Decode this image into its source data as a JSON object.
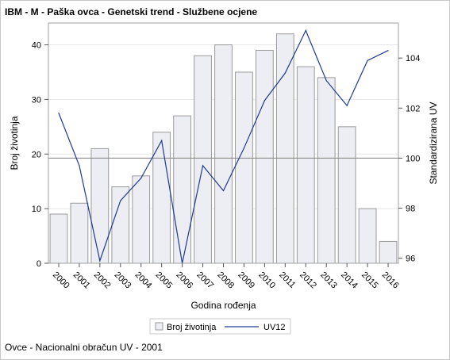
{
  "chart_data": {
    "type": "bar",
    "title": "IBM - M - Paška ovca - Genetski trend - Službene ocjene",
    "xlabel": "Godina rođenja",
    "ylabel": "Broj životinja",
    "y2label": "Standardizirana UV",
    "categories": [
      "2000",
      "2001",
      "2002",
      "2003",
      "2004",
      "2005",
      "2006",
      "2007",
      "2008",
      "2009",
      "2010",
      "2011",
      "2012",
      "2013",
      "2014",
      "2015",
      "2016"
    ],
    "series": [
      {
        "name": "Broj životinja",
        "type": "bar",
        "axis": "left",
        "values": [
          9,
          11,
          21,
          14,
          16,
          24,
          27,
          38,
          40,
          35,
          39,
          42,
          36,
          34,
          25,
          10,
          4
        ]
      },
      {
        "name": "UV12",
        "type": "line",
        "axis": "right",
        "values": [
          101.8,
          99.7,
          95.9,
          98.3,
          99.2,
          100.7,
          95.8,
          99.7,
          98.7,
          100.4,
          102.3,
          103.4,
          105.1,
          103.1,
          102.1,
          103.9,
          104.3
        ]
      }
    ],
    "ylim": [
      0,
      44
    ],
    "y2lim": [
      95.8,
      105.4
    ],
    "yticks": [
      "0",
      "10",
      "20",
      "30",
      "40"
    ],
    "y2ticks": [
      "96",
      "98",
      "100",
      "102",
      "104"
    ],
    "y2_reference": 100,
    "y_gridlines": true,
    "legend_position": "bottom"
  },
  "colors": {
    "bar_fill": "#eceef3",
    "bar_stroke": "#9a9a9a",
    "line": "#1f3a93",
    "reference": "#8c8c8c",
    "grid": "#e6e6e6"
  },
  "legend": {
    "bar_label": "Broj životinja",
    "line_label": "UV12"
  },
  "footnote": "Ovce - Nacionalni obračun UV - 2001"
}
